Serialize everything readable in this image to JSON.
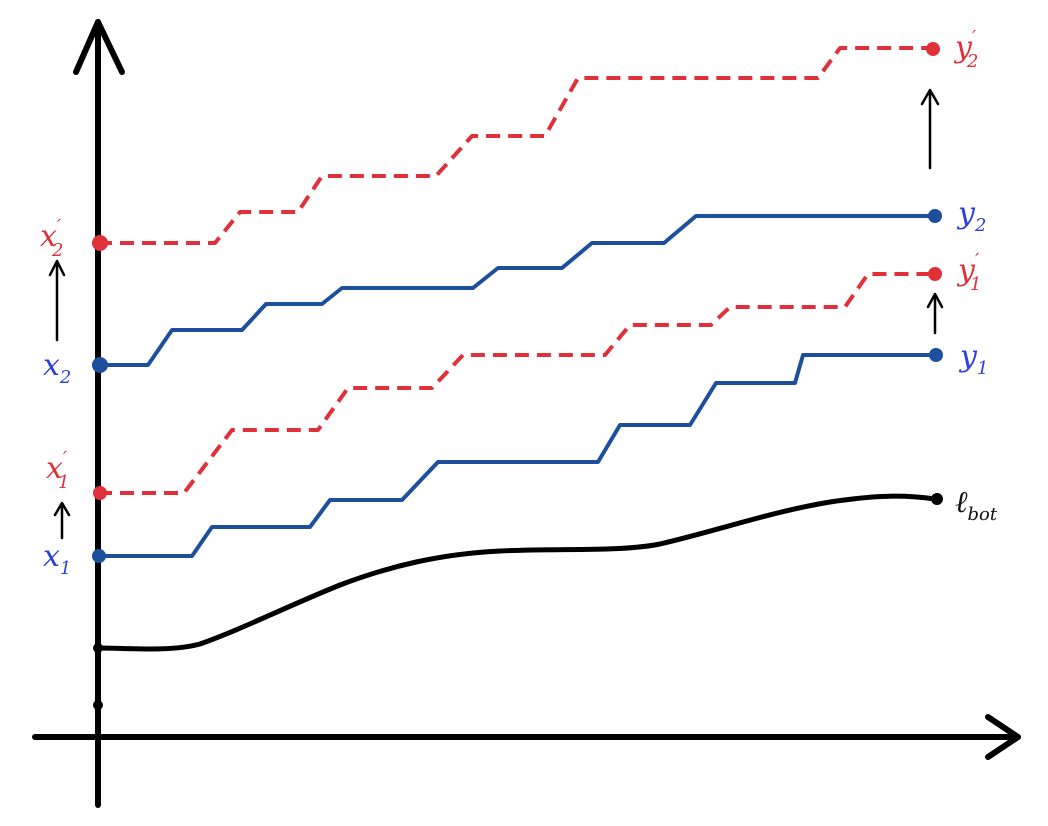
{
  "colors": {
    "blue_path": "#1e4f9c",
    "blue_label": "#2b3ee0",
    "red": "#e0313a",
    "axis": "#000000"
  },
  "labels": {
    "x1": {
      "base": "x",
      "sub": "1",
      "prime": ""
    },
    "x1_prime": {
      "base": "x",
      "sub": "1",
      "prime": "′"
    },
    "x2": {
      "base": "x",
      "sub": "2",
      "prime": ""
    },
    "x2_prime": {
      "base": "x",
      "sub": "2",
      "prime": "′"
    },
    "y1": {
      "base": "y",
      "sub": "1",
      "prime": ""
    },
    "y1_prime": {
      "base": "y",
      "sub": "1",
      "prime": "′"
    },
    "y2": {
      "base": "y",
      "sub": "2",
      "prime": ""
    },
    "y2_prime": {
      "base": "y",
      "sub": "2",
      "prime": "′"
    },
    "lbot": {
      "base": "ℓ",
      "sub": "bot",
      "prime": ""
    }
  }
}
